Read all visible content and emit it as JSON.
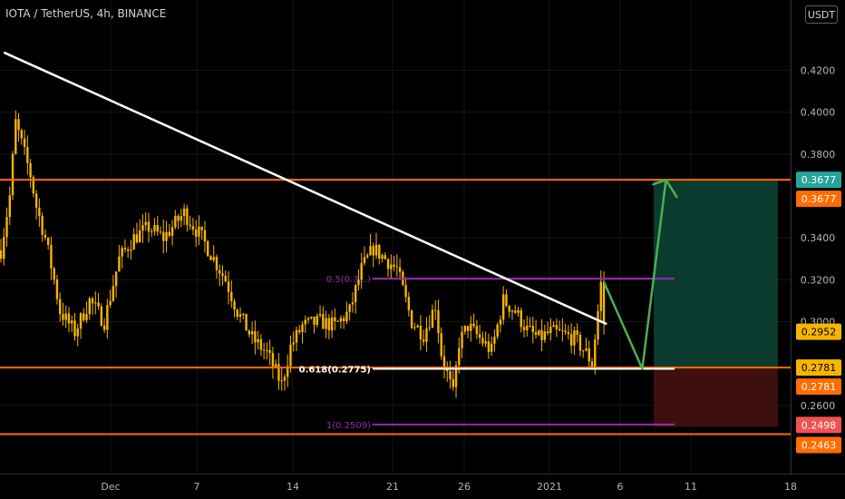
{
  "header": {
    "symbol_title": "IOTA / TetherUS, 4h, BINANCE",
    "currency_unit": "USDT"
  },
  "colors": {
    "background": "#000000",
    "candle": "#f7b500",
    "trendline": "#ffffff",
    "level": "#ff6d00",
    "fib": "#9c27b0",
    "target_zone": "#0b3a2e",
    "stop_zone": "#3d0f0f",
    "arrow": "#4caf50",
    "grid": "#151518",
    "axis_text": "#b2b5be"
  },
  "chart_data": {
    "type": "candlestick",
    "symbol": "IOTA/USDT",
    "timeframe": "4h",
    "exchange": "BINANCE",
    "ylim": [
      0.236,
      0.436
    ],
    "y_ticks": [
      "0.4200",
      "0.4000",
      "0.3800",
      "0.3400",
      "0.3200",
      "0.3000",
      "0.2600"
    ],
    "x_ticks": [
      "Dec",
      "7",
      "14",
      "21",
      "26",
      "2021",
      "6",
      "11",
      "18"
    ],
    "price_path": [
      [
        0,
        0.334
      ],
      [
        3,
        0.36
      ],
      [
        5,
        0.395
      ],
      [
        8,
        0.38
      ],
      [
        10,
        0.37
      ],
      [
        12,
        0.355
      ],
      [
        15,
        0.34
      ],
      [
        18,
        0.32
      ],
      [
        20,
        0.305
      ],
      [
        25,
        0.295
      ],
      [
        30,
        0.31
      ],
      [
        35,
        0.3
      ],
      [
        40,
        0.33
      ],
      [
        45,
        0.34
      ],
      [
        50,
        0.345
      ],
      [
        55,
        0.34
      ],
      [
        62,
        0.352
      ],
      [
        68,
        0.34
      ],
      [
        72,
        0.33
      ],
      [
        76,
        0.32
      ],
      [
        80,
        0.305
      ],
      [
        85,
        0.292
      ],
      [
        90,
        0.285
      ],
      [
        95,
        0.27
      ],
      [
        98,
        0.288
      ],
      [
        102,
        0.298
      ],
      [
        108,
        0.3
      ],
      [
        113,
        0.298
      ],
      [
        118,
        0.305
      ],
      [
        122,
        0.325
      ],
      [
        126,
        0.335
      ],
      [
        130,
        0.33
      ],
      [
        134,
        0.325
      ],
      [
        139,
        0.3
      ],
      [
        143,
        0.294
      ],
      [
        147,
        0.308
      ],
      [
        149,
        0.285
      ],
      [
        151,
        0.275
      ],
      [
        153,
        0.265
      ],
      [
        155,
        0.29
      ],
      [
        158,
        0.298
      ],
      [
        162,
        0.292
      ],
      [
        166,
        0.286
      ],
      [
        170,
        0.31
      ],
      [
        174,
        0.305
      ],
      [
        178,
        0.296
      ],
      [
        182,
        0.292
      ],
      [
        186,
        0.295
      ],
      [
        190,
        0.294
      ],
      [
        194,
        0.292
      ],
      [
        198,
        0.285
      ],
      [
        200,
        0.28
      ],
      [
        202,
        0.305
      ],
      [
        203,
        0.318
      ],
      [
        204,
        0.3
      ]
    ],
    "trendline": {
      "start": [
        1,
        0.4285
      ],
      "end": [
        205,
        0.2988
      ]
    },
    "horizontal_levels": [
      {
        "label": "0.3677",
        "price": 0.3677
      },
      {
        "label": "0.2781",
        "price": 0.2781
      },
      {
        "label": "0.2463",
        "price": 0.2463
      }
    ],
    "fib_levels": [
      {
        "label": "0.5(0.3...)",
        "price": 0.3205
      },
      {
        "label": "0.618(0.2775)",
        "price": 0.2775
      },
      {
        "label": "1(0.2509)",
        "price": 0.2509
      }
    ],
    "position": {
      "type": "long",
      "entry": 0.2781,
      "target": 0.3677,
      "stop": 0.2498
    },
    "projection_path": [
      [
        204,
        0.319
      ],
      [
        217,
        0.2775
      ],
      [
        225,
        0.3677
      ]
    ],
    "price_labels": [
      {
        "label": "0.3677",
        "price": 0.3677,
        "color": "#26a69a"
      },
      {
        "label": "0.3677",
        "price": 0.3677,
        "color": "#ff6d00"
      },
      {
        "label": "0.2952",
        "price": 0.2952,
        "color": "#f7b500"
      },
      {
        "label": "0.2781",
        "price": 0.2781,
        "color": "#f7b500"
      },
      {
        "label": "0.2781",
        "price": 0.2781,
        "color": "#ff6d00"
      },
      {
        "label": "0.2498",
        "price": 0.2498,
        "color": "#ef5350"
      },
      {
        "label": "0.2463",
        "price": 0.2463,
        "color": "#ff6d00"
      }
    ]
  }
}
